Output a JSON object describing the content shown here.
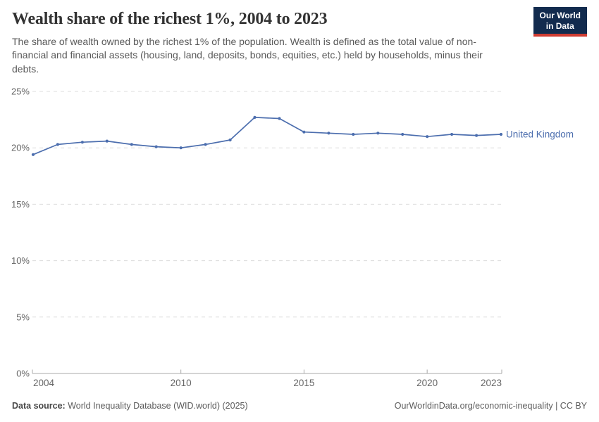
{
  "header": {
    "title": "Wealth share of the richest 1%, 2004 to 2023",
    "subtitle": "The share of wealth owned by the richest 1% of the population. Wealth is defined as the total value of non-financial and financial assets (housing, land, deposits, bonds, equities, etc.) held by households, minus their debts."
  },
  "logo": {
    "line1": "Our World",
    "line2": "in Data",
    "bg_color": "#122b4e",
    "stripe_color": "#cf3c32"
  },
  "chart_data": {
    "type": "line",
    "title": "Wealth share of the richest 1%, 2004 to 2023",
    "xlabel": "",
    "ylabel": "",
    "xlim": [
      2004,
      2023
    ],
    "ylim": [
      0,
      25
    ],
    "x": [
      2004,
      2005,
      2006,
      2007,
      2008,
      2009,
      2010,
      2011,
      2012,
      2013,
      2014,
      2015,
      2016,
      2017,
      2018,
      2019,
      2020,
      2021,
      2022,
      2023
    ],
    "series": [
      {
        "name": "United Kingdom",
        "color": "#4c6eae",
        "values": [
          19.4,
          20.3,
          20.5,
          20.6,
          20.3,
          20.1,
          20.0,
          20.3,
          20.7,
          22.7,
          22.6,
          21.4,
          21.3,
          21.2,
          21.3,
          21.2,
          21.0,
          21.2,
          21.1,
          21.2
        ]
      }
    ],
    "xticks": [
      2004,
      2010,
      2015,
      2020,
      2023
    ],
    "yticks": [
      0,
      5,
      10,
      15,
      20,
      25
    ],
    "ytick_suffix": "%",
    "grid": "horizontal-dashed",
    "legend_position": "end-of-line-label"
  },
  "footer": {
    "source_label": "Data source:",
    "source_rest": "World Inequality Database (WID.world) (2025)",
    "citation_link": "OurWorldinData.org/economic-inequality",
    "citation_suffix": "| CC BY"
  },
  "colors": {
    "line": "#4c6eae",
    "grid": "#dcdcdc",
    "axis": "#a8a8a8",
    "tick_label": "#666666",
    "title": "#333333",
    "subtitle": "#595959"
  }
}
